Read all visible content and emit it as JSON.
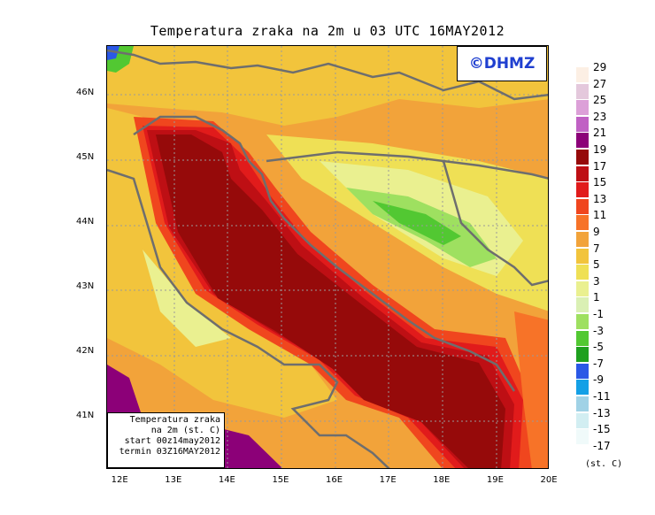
{
  "title": "Temperatura zraka na 2m u 03 UTC 16MAY2012",
  "logo": "©DHMZ",
  "info_box": {
    "line1": "Temperatura zraka",
    "line2": "na 2m (st. C)",
    "line3": "start 00z14may2012",
    "line4": "termin 03Z16MAY2012"
  },
  "map_extent": {
    "lon": [
      11.75,
      20.0
    ],
    "lat": [
      40.2,
      46.75
    ]
  },
  "axis": {
    "lon_ticks": [
      {
        "value": 12,
        "label": "12E"
      },
      {
        "value": 13,
        "label": "13E"
      },
      {
        "value": 14,
        "label": "14E"
      },
      {
        "value": 15,
        "label": "15E"
      },
      {
        "value": 16,
        "label": "16E"
      },
      {
        "value": 17,
        "label": "17E"
      },
      {
        "value": 18,
        "label": "18E"
      },
      {
        "value": 19,
        "label": "19E"
      },
      {
        "value": 20,
        "label": "20E"
      }
    ],
    "lat_ticks": [
      {
        "value": 46,
        "label": "46N"
      },
      {
        "value": 45,
        "label": "45N"
      },
      {
        "value": 44,
        "label": "44N"
      },
      {
        "value": 43,
        "label": "43N"
      },
      {
        "value": 42,
        "label": "42N"
      },
      {
        "value": 41,
        "label": "41N"
      }
    ]
  },
  "legend": {
    "units": "(st. C)",
    "entries": [
      {
        "label": "29",
        "color": "#fcefe4"
      },
      {
        "label": "27",
        "color": "#e4c8dc"
      },
      {
        "label": "25",
        "color": "#dca0d8"
      },
      {
        "label": "23",
        "color": "#c061c4"
      },
      {
        "label": "21",
        "color": "#8c0078"
      },
      {
        "label": "19",
        "color": "#960a0a"
      },
      {
        "label": "17",
        "color": "#be0f14"
      },
      {
        "label": "15",
        "color": "#e11b1b"
      },
      {
        "label": "13",
        "color": "#f0461e"
      },
      {
        "label": "11",
        "color": "#f77328"
      },
      {
        "label": "9",
        "color": "#f2a33a"
      },
      {
        "label": "7",
        "color": "#f2c43c"
      },
      {
        "label": "5",
        "color": "#efe055"
      },
      {
        "label": "3",
        "color": "#eaf090"
      },
      {
        "label": "1",
        "color": "#daf0b4"
      },
      {
        "label": "-1",
        "color": "#9ee060"
      },
      {
        "label": "-3",
        "color": "#52c832"
      },
      {
        "label": "-5",
        "color": "#1ea01e"
      },
      {
        "label": "-7",
        "color": "#2a58e6"
      },
      {
        "label": "-9",
        "color": "#14a0e6"
      },
      {
        "label": "-11",
        "color": "#a0d2e6"
      },
      {
        "label": "-13",
        "color": "#d2eef2"
      },
      {
        "label": "-15",
        "color": "#f0fafa"
      },
      {
        "label": "-17",
        "color": "#ffffff"
      }
    ]
  }
}
